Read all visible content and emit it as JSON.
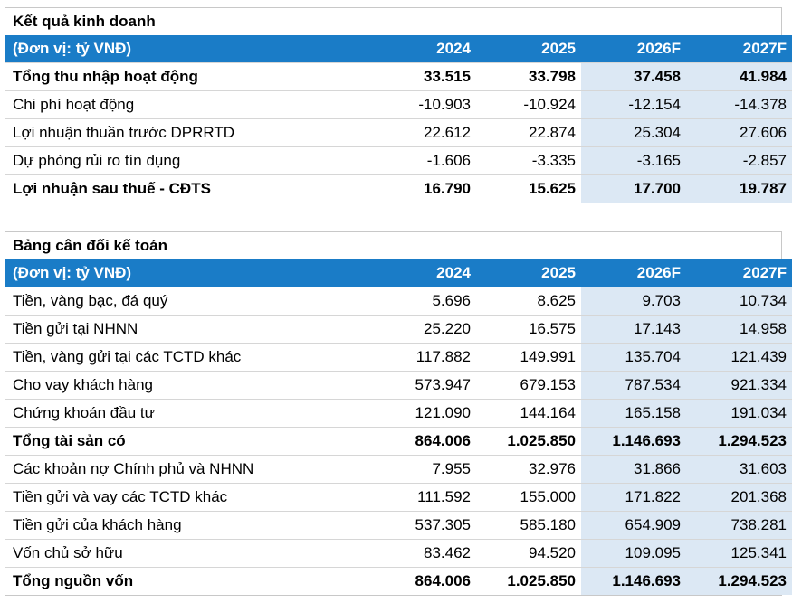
{
  "income": {
    "title": "Kết quả kinh doanh",
    "header": [
      "(Đơn vị: tỷ VNĐ)",
      "2024",
      "2025",
      "2026F",
      "2027F"
    ],
    "rows": [
      {
        "label": "Tổng thu nhập hoạt động",
        "values": [
          "33.515",
          "33.798",
          "37.458",
          "41.984"
        ],
        "bold": true
      },
      {
        "label": "Chi phí hoạt động",
        "values": [
          "-10.903",
          "-10.924",
          "-12.154",
          "-14.378"
        ],
        "bold": false
      },
      {
        "label": "Lợi nhuận thuần trước DPRRTD",
        "values": [
          "22.612",
          "22.874",
          "25.304",
          "27.606"
        ],
        "bold": false
      },
      {
        "label": "Dự phòng rủi ro tín dụng",
        "values": [
          "-1.606",
          "-3.335",
          "-3.165",
          "-2.857"
        ],
        "bold": false
      },
      {
        "label": "Lợi nhuận sau thuế - CĐTS",
        "values": [
          "16.790",
          "15.625",
          "17.700",
          "19.787"
        ],
        "bold": true
      }
    ]
  },
  "balance": {
    "title": "Bảng cân đối kế toán",
    "header": [
      "(Đơn vị: tỷ VNĐ)",
      "2024",
      "2025",
      "2026F",
      "2027F"
    ],
    "rows": [
      {
        "label": "Tiền, vàng bạc, đá quý",
        "values": [
          "5.696",
          "8.625",
          "9.703",
          "10.734"
        ],
        "bold": false
      },
      {
        "label": "Tiền gửi tại NHNN",
        "values": [
          "25.220",
          "16.575",
          "17.143",
          "14.958"
        ],
        "bold": false
      },
      {
        "label": "Tiền, vàng gửi tại các TCTD khác",
        "values": [
          "117.882",
          "149.991",
          "135.704",
          "121.439"
        ],
        "bold": false
      },
      {
        "label": "Cho vay khách hàng",
        "values": [
          "573.947",
          "679.153",
          "787.534",
          "921.334"
        ],
        "bold": false
      },
      {
        "label": "Chứng khoán đầu tư",
        "values": [
          "121.090",
          "144.164",
          "165.158",
          "191.034"
        ],
        "bold": false
      },
      {
        "label": "Tổng tài sản có",
        "values": [
          "864.006",
          "1.025.850",
          "1.146.693",
          "1.294.523"
        ],
        "bold": true
      },
      {
        "label": "Các khoản nợ Chính phủ và NHNN",
        "values": [
          "7.955",
          "32.976",
          "31.866",
          "31.603"
        ],
        "bold": false
      },
      {
        "label": "Tiền gửi và vay các TCTD khác",
        "values": [
          "111.592",
          "155.000",
          "171.822",
          "201.368"
        ],
        "bold": false
      },
      {
        "label": "Tiền gửi của khách hàng",
        "values": [
          "537.305",
          "585.180",
          "654.909",
          "738.281"
        ],
        "bold": false
      },
      {
        "label": "Vốn chủ sở hữu",
        "values": [
          "83.462",
          "94.520",
          "109.095",
          "125.341"
        ],
        "bold": false
      },
      {
        "label": "Tổng nguồn vốn",
        "values": [
          "864.006",
          "1.025.850",
          "1.146.693",
          "1.294.523"
        ],
        "bold": true
      }
    ]
  },
  "colors": {
    "header_bg": "#1a7cc7",
    "forecast_bg": "#dce8f4"
  }
}
